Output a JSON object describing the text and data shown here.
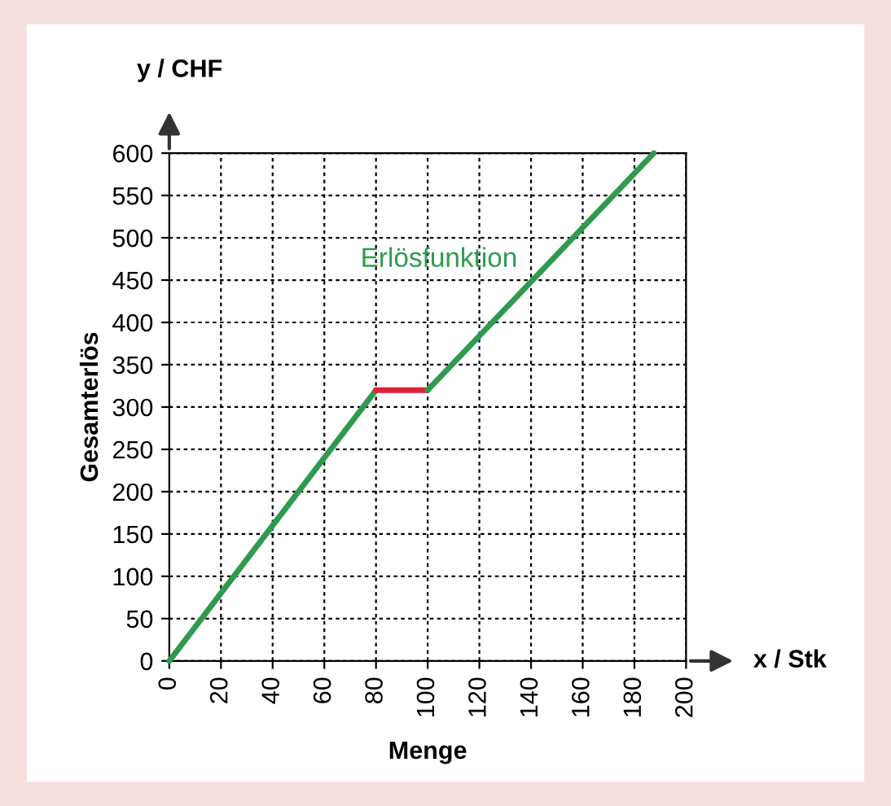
{
  "chart_data": {
    "type": "line",
    "xlabel": "Menge",
    "ylabel": "Gesamterlös",
    "series": [
      {
        "color": "#2e9a4e",
        "x": [
          0,
          80
        ],
        "values": [
          0,
          320
        ]
      },
      {
        "color": "#e0213a",
        "x": [
          80,
          100
        ],
        "values": [
          320,
          320
        ]
      },
      {
        "color": "#2e9a4e",
        "x": [
          100,
          187.5
        ],
        "values": [
          320,
          600
        ]
      }
    ],
    "xlim": [
      0,
      200
    ],
    "xticks": [
      0,
      20,
      40,
      60,
      80,
      100,
      120,
      140,
      160,
      180,
      200
    ],
    "ylim": [
      0,
      600
    ],
    "yticks": [
      0,
      50,
      100,
      150,
      200,
      250,
      300,
      350,
      400,
      450,
      500,
      550,
      600
    ],
    "grid": true,
    "line_style": "solid",
    "marker": "none",
    "annotations": [
      "Erlösfunktion",
      "y / CHF",
      "x / Stk"
    ]
  }
}
